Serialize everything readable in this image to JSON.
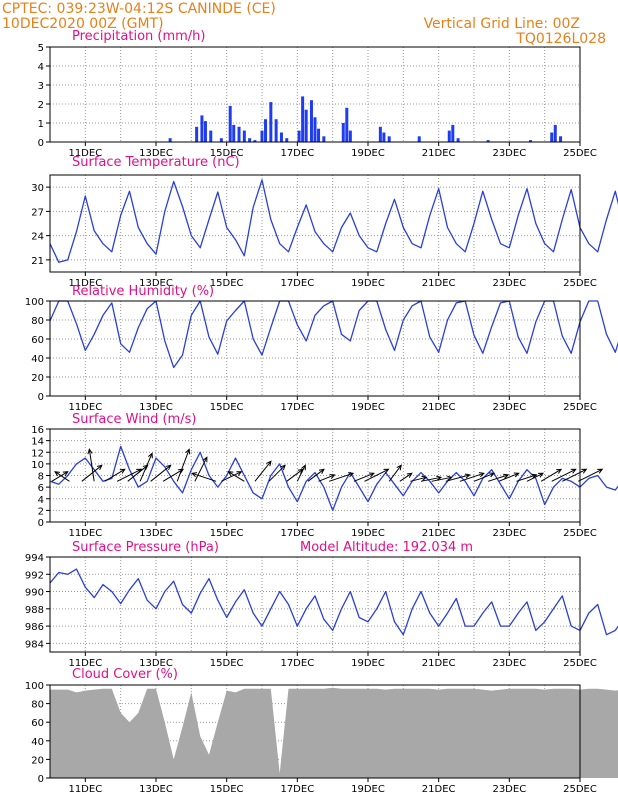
{
  "header": {
    "left_line1": "CPTEC:   039:23W-04:12S   CANINDE (CE)",
    "left_line2": "10DEC2020 00Z (GMT)",
    "right_line1": "Vertical Grid Line: 00Z",
    "right_line2": "TQ0126L028"
  },
  "colors": {
    "header": "#e8801a",
    "panel_title": "#e0108a",
    "series_line": "#2b3fd6",
    "precip_bar": "#1f3cf0",
    "cloud_fill": "#a8a8a8",
    "wind_arrow": "#000000"
  },
  "chart_data": [
    {
      "id": "precip",
      "type": "bar",
      "title": "Precipitation (mm/h)",
      "ylim": [
        0,
        5
      ],
      "yticks": [
        0,
        1,
        2,
        3,
        4,
        5
      ],
      "x_ticks": [
        "11DEC",
        "13DEC",
        "15DEC",
        "17DEC",
        "19DEC",
        "21DEC",
        "23DEC",
        "25DEC"
      ],
      "x_range_days": [
        10,
        25
      ],
      "events": [
        {
          "day": 13.4,
          "value": 0.2
        },
        {
          "day": 14.15,
          "value": 0.8
        },
        {
          "day": 14.3,
          "value": 1.4
        },
        {
          "day": 14.4,
          "value": 1.1
        },
        {
          "day": 14.55,
          "value": 0.6
        },
        {
          "day": 14.85,
          "value": 0.2
        },
        {
          "day": 15.1,
          "value": 1.9
        },
        {
          "day": 15.2,
          "value": 0.9
        },
        {
          "day": 15.35,
          "value": 0.8
        },
        {
          "day": 15.5,
          "value": 0.6
        },
        {
          "day": 15.65,
          "value": 0.2
        },
        {
          "day": 15.8,
          "value": 0.1
        },
        {
          "day": 16.0,
          "value": 0.6
        },
        {
          "day": 16.1,
          "value": 1.2
        },
        {
          "day": 16.25,
          "value": 2.1
        },
        {
          "day": 16.4,
          "value": 1.2
        },
        {
          "day": 16.55,
          "value": 0.5
        },
        {
          "day": 16.7,
          "value": 0.2
        },
        {
          "day": 17.05,
          "value": 0.6
        },
        {
          "day": 17.15,
          "value": 2.4
        },
        {
          "day": 17.25,
          "value": 1.7
        },
        {
          "day": 17.4,
          "value": 2.2
        },
        {
          "day": 17.5,
          "value": 1.3
        },
        {
          "day": 17.6,
          "value": 0.7
        },
        {
          "day": 17.75,
          "value": 0.3
        },
        {
          "day": 18.3,
          "value": 1.0
        },
        {
          "day": 18.4,
          "value": 1.8
        },
        {
          "day": 18.5,
          "value": 0.6
        },
        {
          "day": 19.35,
          "value": 0.8
        },
        {
          "day": 19.45,
          "value": 0.5
        },
        {
          "day": 19.6,
          "value": 0.3
        },
        {
          "day": 20.45,
          "value": 0.3
        },
        {
          "day": 21.3,
          "value": 0.6
        },
        {
          "day": 21.4,
          "value": 0.9
        },
        {
          "day": 21.55,
          "value": 0.2
        },
        {
          "day": 22.4,
          "value": 0.1
        },
        {
          "day": 23.6,
          "value": 0.1
        },
        {
          "day": 24.2,
          "value": 0.5
        },
        {
          "day": 24.3,
          "value": 0.9
        },
        {
          "day": 24.45,
          "value": 0.3
        }
      ]
    },
    {
      "id": "temp",
      "type": "line",
      "title": "Surface Temperature (nC)",
      "ylim": [
        19.5,
        31.5
      ],
      "yticks": [
        21,
        24,
        27,
        30
      ],
      "x_ticks": [
        "11DEC",
        "13DEC",
        "15DEC",
        "17DEC",
        "19DEC",
        "21DEC",
        "23DEC",
        "25DEC"
      ],
      "x_range_days": [
        10,
        25
      ],
      "x_step_days": 0.25,
      "values": [
        23.0,
        20.7,
        21.0,
        24.5,
        28.9,
        24.6,
        23.0,
        22.0,
        26.5,
        29.5,
        25.0,
        23.0,
        21.7,
        27.0,
        30.7,
        27.6,
        24.0,
        22.5,
        26.0,
        29.4,
        25.0,
        23.5,
        21.5,
        27.5,
        30.9,
        26.0,
        23.0,
        22.0,
        25.0,
        27.8,
        24.5,
        23.0,
        22.0,
        25.0,
        26.8,
        24.0,
        22.5,
        22.0,
        25.5,
        28.5,
        25.0,
        23.0,
        22.5,
        26.5,
        29.8,
        25.0,
        23.0,
        22.0,
        25.5,
        29.5,
        26.0,
        23.0,
        22.5,
        26.5,
        29.8,
        25.5,
        23.0,
        22.0,
        26.0,
        29.7,
        25.0,
        23.0,
        22.0,
        26.0,
        29.5,
        25.0,
        23.0,
        22.0,
        26.0,
        29.3,
        24.5,
        23.0,
        22.0,
        26.0,
        29.5,
        26.5,
        23.0,
        22.5,
        26.0,
        29.6,
        25.5,
        23.0,
        22.5,
        26.0,
        29.3,
        24.5,
        22.5,
        22.0,
        26.5,
        29.5,
        25.0,
        23.0,
        22.0,
        26.0,
        29.5,
        25.0,
        23.0,
        22.0,
        26.0,
        29.5,
        25.0,
        23.0,
        22.0,
        26.0,
        29.5,
        26.0,
        23.5,
        22.0,
        26.0,
        29.8,
        25.8
      ]
    },
    {
      "id": "rh",
      "type": "line",
      "title": "Relative Humidity (%)",
      "ylim": [
        0,
        100
      ],
      "yticks": [
        0,
        20,
        40,
        60,
        80,
        100
      ],
      "x_ticks": [
        "11DEC",
        "13DEC",
        "15DEC",
        "17DEC",
        "19DEC",
        "21DEC",
        "23DEC",
        "25DEC"
      ],
      "x_range_days": [
        10,
        25
      ],
      "x_step_days": 0.25,
      "values": [
        79,
        100,
        100,
        76,
        48,
        65,
        85,
        98,
        55,
        46,
        72,
        92,
        100,
        58,
        30,
        43,
        85,
        100,
        62,
        44,
        79,
        90,
        100,
        60,
        43,
        72,
        100,
        100,
        75,
        58,
        85,
        95,
        100,
        65,
        58,
        90,
        100,
        100,
        70,
        48,
        80,
        95,
        100,
        62,
        46,
        80,
        98,
        100,
        64,
        45,
        73,
        98,
        100,
        62,
        45,
        78,
        100,
        100,
        63,
        45,
        78,
        100,
        100,
        65,
        46,
        76,
        100,
        100,
        63,
        46,
        75,
        100,
        100,
        62,
        48,
        75,
        100,
        100,
        65,
        48,
        76,
        100,
        100,
        63,
        48,
        76,
        100,
        100,
        62,
        46,
        76,
        100,
        100,
        64,
        47,
        75,
        100,
        100,
        62,
        45,
        76,
        100,
        100,
        63,
        46,
        74,
        100,
        100,
        64,
        45,
        75
      ]
    },
    {
      "id": "wind",
      "type": "line",
      "title": "Surface Wind (m/s)",
      "ylim": [
        0,
        16
      ],
      "yticks": [
        0,
        2,
        4,
        6,
        8,
        10,
        12,
        14,
        16
      ],
      "x_ticks": [
        "11DEC",
        "13DEC",
        "15DEC",
        "17DEC",
        "19DEC",
        "21DEC",
        "23DEC",
        "25DEC"
      ],
      "x_range_days": [
        10,
        25
      ],
      "x_step_days": 0.25,
      "values": [
        7.0,
        6.5,
        8.0,
        10.0,
        11.0,
        9.0,
        7.0,
        7.5,
        13.0,
        9.0,
        6.0,
        7.0,
        11.0,
        9.5,
        7.0,
        5.0,
        9.0,
        12.0,
        8.0,
        6.0,
        8.0,
        11.0,
        8.0,
        5.0,
        4.0,
        8.0,
        10.0,
        6.0,
        3.5,
        7.0,
        8.5,
        6.0,
        2.0,
        6.0,
        8.5,
        6.0,
        3.5,
        6.5,
        8.5,
        6.5,
        4.5,
        7.0,
        8.5,
        7.0,
        5.0,
        7.0,
        8.5,
        7.0,
        4.5,
        7.5,
        9.0,
        6.5,
        4.0,
        7.0,
        9.0,
        7.5,
        3.0,
        6.0,
        7.5,
        7.0,
        6.0,
        7.5,
        8.0,
        6.0,
        5.5,
        7.5,
        8.5,
        7.0,
        5.5,
        7.5,
        9.0,
        7.0,
        5.0,
        7.0,
        9.0,
        7.0,
        5.0,
        7.0,
        9.0,
        7.0,
        5.0,
        7.0,
        9.0,
        7.0,
        4.5,
        7.5,
        9.5,
        7.0,
        5.0,
        7.5,
        9.5,
        7.0,
        5.0,
        7.5,
        10.0,
        7.5,
        5.0,
        7.0,
        10.0,
        8.0,
        6.0,
        9.0,
        12.0,
        10.0,
        6.0,
        9.0,
        12.5,
        9.0,
        7.0,
        10.0,
        12.0
      ],
      "arrows": [
        {
          "day": 10.05,
          "u": 2.0,
          "v": 1.2
        },
        {
          "day": 10.55,
          "u": -1.8,
          "v": 1.2
        },
        {
          "day": 10.9,
          "u": 2.5,
          "v": 2.0
        },
        {
          "day": 11.25,
          "u": -0.6,
          "v": 4.0
        },
        {
          "day": 11.55,
          "u": 2.5,
          "v": 1.5
        },
        {
          "day": 11.9,
          "u": 3.0,
          "v": 1.5
        },
        {
          "day": 12.2,
          "u": 2.5,
          "v": 2.0
        },
        {
          "day": 12.55,
          "u": 1.5,
          "v": 3.5
        },
        {
          "day": 12.85,
          "u": 2.5,
          "v": 2.0
        },
        {
          "day": 13.2,
          "u": 2.5,
          "v": 1.5
        },
        {
          "day": 13.6,
          "u": 1.5,
          "v": 4.0
        },
        {
          "day": 14.1,
          "u": 1.5,
          "v": 3.0
        },
        {
          "day": 14.7,
          "u": -3.0,
          "v": 1.0
        },
        {
          "day": 14.85,
          "u": 2.5,
          "v": 1.2
        },
        {
          "day": 15.5,
          "u": -2.0,
          "v": 1.2
        },
        {
          "day": 15.8,
          "u": 2.0,
          "v": 2.5
        },
        {
          "day": 16.2,
          "u": 2.0,
          "v": 2.0
        },
        {
          "day": 16.7,
          "u": 2.0,
          "v": 1.5
        },
        {
          "day": 17.0,
          "u": 1.0,
          "v": 2.0
        },
        {
          "day": 17.3,
          "u": 2.0,
          "v": 1.5
        },
        {
          "day": 17.6,
          "u": 2.0,
          "v": 0.8
        },
        {
          "day": 17.9,
          "u": 3.0,
          "v": 1.0
        },
        {
          "day": 18.6,
          "u": 2.5,
          "v": 1.0
        },
        {
          "day": 18.9,
          "u": 3.0,
          "v": 1.5
        },
        {
          "day": 19.6,
          "u": 1.5,
          "v": 2.0
        },
        {
          "day": 19.9,
          "u": 1.5,
          "v": 1.0
        },
        {
          "day": 20.2,
          "u": 2.0,
          "v": 0.5
        },
        {
          "day": 20.5,
          "u": 2.5,
          "v": 0.5
        },
        {
          "day": 20.8,
          "u": 2.5,
          "v": 0.5
        },
        {
          "day": 21.2,
          "u": 3.0,
          "v": 0.8
        },
        {
          "day": 21.6,
          "u": 3.0,
          "v": 1.0
        },
        {
          "day": 22.0,
          "u": 2.5,
          "v": 1.0
        },
        {
          "day": 22.4,
          "u": 2.5,
          "v": 0.8
        },
        {
          "day": 22.7,
          "u": 2.5,
          "v": 1.0
        },
        {
          "day": 23.2,
          "u": 2.5,
          "v": 0.8
        },
        {
          "day": 23.5,
          "u": 2.0,
          "v": 1.0
        },
        {
          "day": 23.9,
          "u": 2.5,
          "v": 1.5
        },
        {
          "day": 24.2,
          "u": 3.0,
          "v": 1.5
        },
        {
          "day": 24.5,
          "u": 3.0,
          "v": 1.5
        },
        {
          "day": 24.95,
          "u": 3.0,
          "v": 1.5
        }
      ]
    },
    {
      "id": "pressure",
      "type": "line",
      "title": "Surface Pressure (hPa)",
      "annotation": "Model Altitude: 192.034 m",
      "ylim": [
        983,
        994
      ],
      "yticks": [
        984,
        986,
        988,
        990,
        992,
        994
      ],
      "x_ticks": [
        "11DEC",
        "13DEC",
        "15DEC",
        "17DEC",
        "19DEC",
        "21DEC",
        "23DEC",
        "25DEC"
      ],
      "x_range_days": [
        10,
        25
      ],
      "x_step_days": 0.25,
      "values": [
        991.0,
        992.2,
        992.0,
        992.6,
        990.5,
        989.3,
        990.8,
        990.0,
        988.6,
        990.2,
        991.5,
        989.0,
        988.0,
        990.0,
        991.2,
        988.5,
        987.5,
        989.8,
        991.5,
        989.0,
        987.0,
        988.8,
        990.2,
        987.5,
        986.0,
        988.0,
        990.0,
        988.5,
        986.0,
        988.0,
        989.5,
        986.8,
        985.5,
        988.0,
        990.0,
        987.0,
        986.5,
        988.0,
        990.0,
        986.5,
        985.0,
        988.0,
        990.0,
        987.5,
        986.0,
        987.5,
        989.2,
        986.0,
        986.0,
        987.5,
        988.8,
        986.0,
        986.0,
        987.5,
        988.8,
        985.5,
        986.5,
        988.0,
        989.5,
        986.0,
        985.5,
        987.5,
        988.5,
        985.0,
        985.5,
        987.0,
        988.5,
        985.0,
        984.5,
        987.0,
        988.5,
        986.0,
        984.5,
        987.5,
        988.8,
        986.0,
        985.5,
        987.5,
        988.5,
        985.0,
        985.0,
        987.0,
        987.8,
        985.0,
        985.5,
        987.5,
        988.0,
        985.0,
        984.2,
        986.5,
        987.8,
        985.0,
        985.5,
        987.5,
        988.0,
        984.8,
        985.0,
        987.0,
        988.0,
        985.0,
        984.5,
        986.5,
        987.5,
        984.5,
        983.6,
        986.5,
        988.5,
        985.0,
        983.5,
        985.0,
        986.5
      ]
    },
    {
      "id": "cloud",
      "type": "area",
      "title": "Cloud Cover (%)",
      "ylim": [
        0,
        100
      ],
      "yticks": [
        0,
        20,
        40,
        60,
        80,
        100
      ],
      "x_ticks": [
        "11DEC",
        "13DEC",
        "15DEC",
        "17DEC",
        "19DEC",
        "21DEC",
        "23DEC",
        "25DEC"
      ],
      "x_range_days": [
        10,
        25
      ],
      "x_step_days": 0.25,
      "values": [
        95,
        95,
        95,
        92,
        94,
        95,
        96,
        96,
        70,
        60,
        70,
        96,
        96,
        60,
        20,
        55,
        92,
        45,
        25,
        60,
        94,
        92,
        96,
        96,
        96,
        96,
        5,
        96,
        96,
        96,
        96,
        96,
        97,
        96,
        96,
        96,
        96,
        96,
        95,
        96,
        96,
        96,
        96,
        96,
        95,
        96,
        96,
        96,
        96,
        95,
        94,
        95,
        96,
        96,
        96,
        96,
        95,
        96,
        96,
        96,
        95,
        96,
        96,
        95,
        94,
        95,
        95,
        96,
        95,
        93,
        94,
        95,
        96,
        95,
        94,
        94,
        95,
        96,
        95,
        93,
        93,
        94,
        95,
        94,
        93,
        93,
        94,
        95,
        93,
        92,
        93,
        94,
        92,
        88,
        92,
        94,
        93,
        90,
        92,
        93,
        92,
        90,
        91,
        92,
        92,
        91,
        93,
        92,
        91,
        5,
        60
      ]
    }
  ]
}
